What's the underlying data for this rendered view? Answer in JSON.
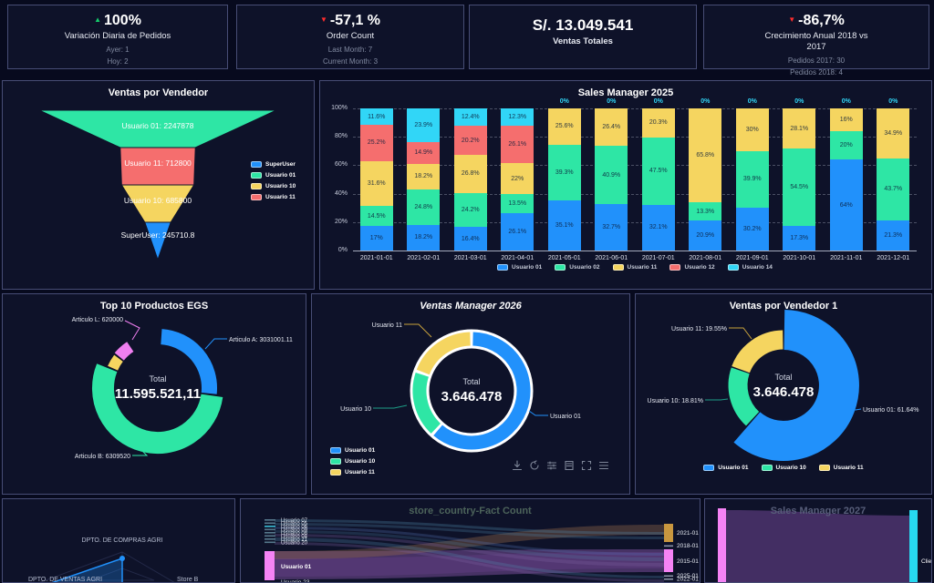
{
  "app": {
    "background": "#070a1e",
    "panel_bg": "#0e1229",
    "panel_border": "#474d75",
    "accent_blue": "#2191fb",
    "accent_green": "#2ee6a5",
    "accent_yellow": "#f5d560",
    "accent_red": "#f56e6e",
    "accent_cyan": "#31d6f7",
    "accent_pink": "#f583f5"
  },
  "cards": [
    {
      "arrow": "▲",
      "trend": "up",
      "value": "100%",
      "title": "Variación Diaria de Pedidos",
      "stats": [
        "Ayer: 1",
        "Hoy: 2"
      ]
    },
    {
      "arrow": "▼",
      "trend": "down",
      "value": "-57,1 %",
      "title": "Order Count",
      "stats": [
        "Last Month: 7",
        "Current Month: 3"
      ]
    },
    {
      "arrow": "",
      "trend": "none",
      "value": "S/. 13.049.541",
      "title": "Ventas Totales",
      "stats": []
    },
    {
      "arrow": "▼",
      "trend": "down",
      "value": "-86,7%",
      "title": "Crecimiento Anual 2018 vs 2017",
      "stats": [
        "Pedidos 2017: 30",
        "Pedidos 2018: 4"
      ]
    }
  ],
  "chart_data": [
    {
      "id": "ventas_por_vendedor",
      "type": "funnel",
      "title": "Ventas por Vendedor",
      "items": [
        {
          "name": "Usuario 01",
          "value": 2247878,
          "label": "Usuario 01: 2247878",
          "color": "#2ee6a5"
        },
        {
          "name": "Usuario 11",
          "value": 712800,
          "label": "Usuario 11: 712800",
          "color": "#f56e6e"
        },
        {
          "name": "Usuario 10",
          "value": 685800,
          "label": "Usuario 10: 685800",
          "color": "#f5d560"
        },
        {
          "name": "SuperUser",
          "value": 245710.8,
          "label": "SuperUser: 245710.8",
          "color": "#2191fb"
        }
      ],
      "legend": [
        {
          "label": "SuperUser",
          "color": "#2191fb"
        },
        {
          "label": "Usuario 01",
          "color": "#2ee6a5"
        },
        {
          "label": "Usuario 10",
          "color": "#f5d560"
        },
        {
          "label": "Usuario 11",
          "color": "#f56e6e"
        }
      ]
    },
    {
      "id": "sales_manager_2025",
      "type": "bar",
      "stacked": true,
      "title": "Sales Manager 2025",
      "categories": [
        "2021-01-01",
        "2021-02-01",
        "2021-03-01",
        "2021-04-01",
        "2021-05-01",
        "2021-06-01",
        "2021-07-01",
        "2021-08-01",
        "2021-09-01",
        "2021-10-01",
        "2021-11-01",
        "2021-12-01"
      ],
      "series": [
        {
          "name": "Usuario 01",
          "color": "#2191fb",
          "values": [
            17,
            18.2,
            16.4,
            26.1,
            35.1,
            32.7,
            32.1,
            20.9,
            30.2,
            17.3,
            64,
            21.3
          ]
        },
        {
          "name": "Usuario 02",
          "color": "#2ee6a5",
          "values": [
            14.5,
            24.8,
            24.2,
            13.5,
            39.3,
            40.9,
            47.5,
            13.3,
            39.9,
            54.5,
            20,
            43.7
          ]
        },
        {
          "name": "Usuario 11",
          "color": "#f5d560",
          "values": [
            31.6,
            18.2,
            26.8,
            22,
            25.6,
            26.4,
            20.3,
            65.8,
            30,
            28.1,
            16,
            34.9
          ]
        },
        {
          "name": "Usuario 12",
          "color": "#f56e6e",
          "values": [
            25.2,
            14.9,
            20.2,
            26.1,
            0,
            0,
            0,
            0,
            0,
            0,
            0,
            0
          ]
        },
        {
          "name": "Usuario 14",
          "color": "#31d6f7",
          "values": [
            11.6,
            23.9,
            12.4,
            12.3,
            0,
            0,
            0,
            0,
            0,
            0,
            0,
            0
          ]
        }
      ],
      "y_ticks": [
        "0%",
        "20%",
        "40%",
        "60%",
        "80%",
        "100%"
      ],
      "ylim": [
        0,
        100
      ],
      "zero_top_label": "0%"
    },
    {
      "id": "top_10_productos_egs",
      "type": "pie",
      "title": "Top 10 Productos EGS",
      "center_label": "Total",
      "center_value": "11.595.521,11",
      "slices": [
        {
          "name": "Articulo A",
          "annotation": "Articulo A: 3031001.11",
          "value": 3031001.11,
          "pct": 26.1,
          "color": "#2191fb"
        },
        {
          "name": "Articulo B",
          "annotation": "Articulo B: 6309520",
          "value": 6309520,
          "pct": 54.4,
          "color": "#2ee6a5"
        },
        {
          "name": "",
          "annotation": "",
          "pct": 4.3,
          "color": "#f5d560"
        },
        {
          "name": "Articulo L",
          "annotation": "Articulo L: 620000",
          "value": 620000,
          "pct": 5.3,
          "color": "#ef7ff0"
        }
      ]
    },
    {
      "id": "ventas_manager_2026",
      "type": "pie",
      "title": "Ventas Manager 2026",
      "center_label": "Total",
      "center_value": "3.646.478",
      "slices": [
        {
          "name": "Usuario 01",
          "pct": 61.64,
          "color": "#2191fb"
        },
        {
          "name": "Usuario 10",
          "pct": 18.81,
          "color": "#2ee6a5"
        },
        {
          "name": "Usuario 11",
          "pct": 19.55,
          "color": "#f5d560"
        }
      ],
      "annotations": [
        "Usuario 11",
        "Usuario 10",
        "Usuario 01"
      ],
      "legend": [
        "Usuario 01",
        "Usuario 10",
        "Usuario 11"
      ],
      "toolbar_icons": [
        "download-icon",
        "restore-icon",
        "filter-icon",
        "data-view-icon",
        "fullscreen-icon",
        "menu-icon"
      ]
    },
    {
      "id": "ventas_por_vendedor_1",
      "type": "pie",
      "title": "Ventas por Vendedor 1",
      "center_label": "Total",
      "center_value": "3.646.478",
      "slices": [
        {
          "name": "Usuario 01",
          "pct": 61.64,
          "color": "#2191fb",
          "annotation": "Usuario 01: 61.64%"
        },
        {
          "name": "Usuario 10",
          "pct": 18.81,
          "color": "#2ee6a5",
          "annotation": "Usuario 10: 18.81%"
        },
        {
          "name": "Usuario 11",
          "pct": 19.55,
          "color": "#f5d560",
          "annotation": "Usuario 11: 19.55%"
        }
      ],
      "legend": [
        "Usuario 01",
        "Usuario 10",
        "Usuario 11"
      ]
    },
    {
      "id": "radar_departamentos",
      "type": "radar",
      "title": "",
      "axes": [
        "DPTO. DE COMPRAS AGRI",
        "Store B",
        "DPTO. DE VENTAS AGRI"
      ]
    },
    {
      "id": "store_country_fact_count",
      "type": "sankey",
      "title": "store_country-Fact Count",
      "left_nodes": [
        "Usuario 07",
        "Usuario 05",
        "Usuario 06",
        "Usuario 09",
        "Usuario 08",
        "Usuario 04",
        "Usuario 21",
        "Usuario 20",
        "Usuario 01",
        "Usuario 23"
      ],
      "right_nodes": [
        "2021-01",
        "2018-01",
        "2015-01",
        "2025-01",
        "2022-01"
      ]
    },
    {
      "id": "sales_manager_2027",
      "type": "sankey",
      "title": "Sales Manager 2027",
      "right_node_label": "Clie"
    }
  ]
}
